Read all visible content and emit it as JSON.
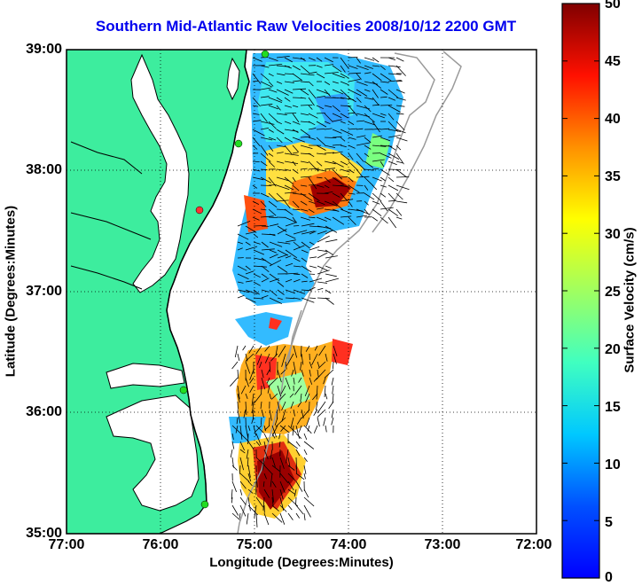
{
  "title": "Southern Mid-Atlantic Raw Velocities 2008/10/12 2200 GMT",
  "x_axis": {
    "label": "Longitude (Degrees:Minutes)",
    "ticks": [
      {
        "value": -77,
        "label": "77:00"
      },
      {
        "value": -76,
        "label": "76:00"
      },
      {
        "value": -75,
        "label": "75:00"
      },
      {
        "value": -74,
        "label": "74:00"
      },
      {
        "value": -73,
        "label": "73:00"
      },
      {
        "value": -72,
        "label": "72:00"
      }
    ],
    "range": [
      -77,
      -72
    ]
  },
  "y_axis": {
    "label": "Latitude (Degrees:Minutes)",
    "ticks": [
      {
        "value": 39,
        "label": "39:00"
      },
      {
        "value": 38,
        "label": "38:00"
      },
      {
        "value": 37,
        "label": "37:00"
      },
      {
        "value": 36,
        "label": "36:00"
      },
      {
        "value": 35,
        "label": "35:00"
      }
    ],
    "range": [
      35,
      39
    ]
  },
  "colorbar": {
    "label": "Surface Velocity (cm/s)",
    "range": [
      0,
      50
    ],
    "ticks": [
      "50",
      "45",
      "40",
      "35",
      "30",
      "25",
      "20",
      "15",
      "10",
      "5",
      "0"
    ],
    "colormap": "jet"
  },
  "colors": {
    "land": "#3ded9e",
    "water": "#ffffff",
    "grid": "#000000",
    "bathymetry": "#9a9a9a",
    "title": "#0000ee",
    "station_green": "#22dd22",
    "station_red": "#ff3333"
  },
  "grid": true
}
